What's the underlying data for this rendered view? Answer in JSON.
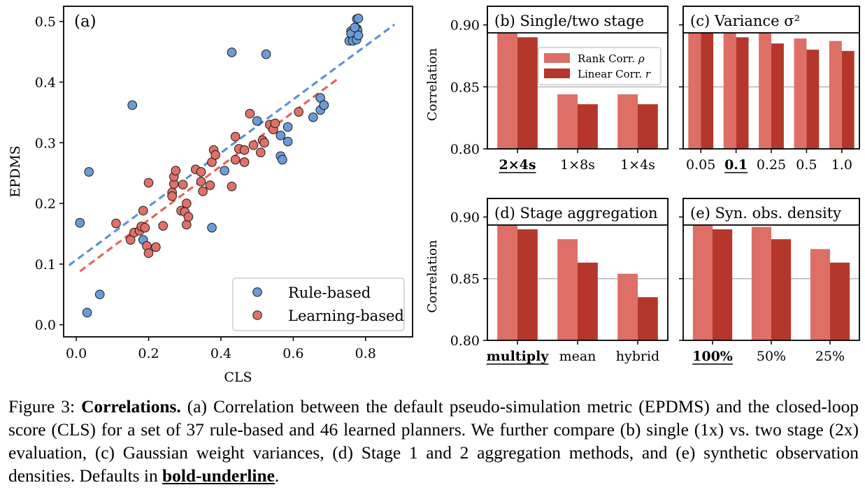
{
  "colors": {
    "rule_based": "#6b9bd8",
    "learning_based": "#e07068",
    "rule_fit": "#5b93d6",
    "learn_fit": "#e0665c",
    "rank_bar": "#dd6f66",
    "linear_bar": "#b5372b",
    "grid": "#b8b8b8"
  },
  "chart_data": [
    {
      "id": "a",
      "type": "scatter",
      "title": "(a)",
      "xlabel": "CLS",
      "ylabel": "EPDMS",
      "xlim": [
        -0.035,
        0.93
      ],
      "ylim": [
        -0.02,
        0.525
      ],
      "xticks": [
        0.0,
        0.2,
        0.4,
        0.6,
        0.8
      ],
      "xtick_labels": [
        "0.0",
        "0.2",
        "0.4",
        "0.6",
        "0.8"
      ],
      "yticks": [
        0.0,
        0.1,
        0.2,
        0.3,
        0.4,
        0.5
      ],
      "ytick_labels": [
        "0.0",
        "0.1",
        "0.2",
        "0.3",
        "0.4",
        "0.5"
      ],
      "grid": false,
      "legend": "bottom-right",
      "series": [
        {
          "name": "Rule-based",
          "color_key": "rule_based",
          "points": [
            [
              0.01,
              0.168
            ],
            [
              0.03,
              0.02
            ],
            [
              0.035,
              0.252
            ],
            [
              0.065,
              0.05
            ],
            [
              0.155,
              0.362
            ],
            [
              0.185,
              0.14
            ],
            [
              0.375,
              0.16
            ],
            [
              0.41,
              0.254
            ],
            [
              0.43,
              0.449
            ],
            [
              0.5,
              0.336
            ],
            [
              0.525,
              0.446
            ],
            [
              0.565,
              0.278
            ],
            [
              0.565,
              0.312
            ],
            [
              0.57,
              0.272
            ],
            [
              0.585,
              0.326
            ],
            [
              0.585,
              0.302
            ],
            [
              0.655,
              0.342
            ],
            [
              0.675,
              0.354
            ],
            [
              0.675,
              0.374
            ],
            [
              0.685,
              0.362
            ],
            [
              0.685,
              0.362
            ],
            [
              0.755,
              0.468
            ],
            [
              0.76,
              0.484
            ],
            [
              0.765,
              0.475
            ],
            [
              0.77,
              0.472
            ],
            [
              0.77,
              0.478
            ],
            [
              0.772,
              0.482
            ],
            [
              0.774,
              0.476
            ],
            [
              0.776,
              0.504
            ],
            [
              0.776,
              0.488
            ],
            [
              0.778,
              0.485
            ],
            [
              0.78,
              0.505
            ],
            [
              0.76,
              0.48
            ],
            [
              0.765,
              0.468
            ],
            [
              0.77,
              0.49
            ],
            [
              0.775,
              0.47
            ],
            [
              0.78,
              0.477
            ]
          ]
        },
        {
          "name": "Learning-based",
          "color_key": "learning_based",
          "points": [
            [
              0.11,
              0.167
            ],
            [
              0.15,
              0.14
            ],
            [
              0.16,
              0.152
            ],
            [
              0.175,
              0.155
            ],
            [
              0.18,
              0.162
            ],
            [
              0.185,
              0.188
            ],
            [
              0.19,
              0.16
            ],
            [
              0.195,
              0.13
            ],
            [
              0.2,
              0.118
            ],
            [
              0.2,
              0.234
            ],
            [
              0.22,
              0.128
            ],
            [
              0.24,
              0.163
            ],
            [
              0.265,
              0.218
            ],
            [
              0.265,
              0.212
            ],
            [
              0.27,
              0.232
            ],
            [
              0.27,
              0.244
            ],
            [
              0.275,
              0.254
            ],
            [
              0.29,
              0.188
            ],
            [
              0.295,
              0.231
            ],
            [
              0.3,
              0.186
            ],
            [
              0.305,
              0.165
            ],
            [
              0.305,
              0.2
            ],
            [
              0.31,
              0.178
            ],
            [
              0.33,
              0.256
            ],
            [
              0.345,
              0.252
            ],
            [
              0.345,
              0.236
            ],
            [
              0.35,
              0.22
            ],
            [
              0.37,
              0.23
            ],
            [
              0.375,
              0.268
            ],
            [
              0.38,
              0.288
            ],
            [
              0.385,
              0.28
            ],
            [
              0.43,
              0.228
            ],
            [
              0.44,
              0.31
            ],
            [
              0.45,
              0.29
            ],
            [
              0.44,
              0.272
            ],
            [
              0.465,
              0.288
            ],
            [
              0.465,
              0.268
            ],
            [
              0.48,
              0.348
            ],
            [
              0.49,
              0.296
            ],
            [
              0.51,
              0.284
            ],
            [
              0.515,
              0.304
            ],
            [
              0.535,
              0.33
            ],
            [
              0.545,
              0.322
            ],
            [
              0.55,
              0.332
            ],
            [
              0.615,
              0.351
            ],
            [
              0.52,
              0.3
            ]
          ]
        }
      ],
      "fits": [
        {
          "series": "Rule-based",
          "color_key": "rule_fit",
          "x": [
            -0.02,
            0.88
          ],
          "y": [
            0.098,
            0.495
          ]
        },
        {
          "series": "Learning-based",
          "color_key": "learn_fit",
          "x": [
            0.01,
            0.72
          ],
          "y": [
            0.088,
            0.404
          ]
        }
      ]
    },
    {
      "id": "b",
      "type": "bar",
      "title": "(b) Single/two stage",
      "ylabel": "Correlation",
      "ylim": [
        0.8,
        0.915
      ],
      "yticks": [
        0.8,
        0.85,
        0.9
      ],
      "ytick_labels": [
        "0.80",
        "0.85",
        "0.90"
      ],
      "categories": [
        "2×4s",
        "1×8s",
        "1×4s"
      ],
      "default_index": 0,
      "legend": "upper-right",
      "series": [
        {
          "name": "Rank Corr. ρ",
          "color_key": "rank_bar",
          "values": [
            0.894,
            0.844,
            0.844
          ]
        },
        {
          "name": "Linear Corr. r",
          "color_key": "linear_bar",
          "values": [
            0.89,
            0.836,
            0.836
          ]
        }
      ]
    },
    {
      "id": "c",
      "type": "bar",
      "title": "(c) Variance σ²",
      "ylabel": "",
      "ylim": [
        0.8,
        0.915
      ],
      "yticks": [
        0.8,
        0.85,
        0.9
      ],
      "ytick_labels": [
        "",
        "",
        ""
      ],
      "categories": [
        "0.05",
        "0.1",
        "0.25",
        "0.5",
        "1.0"
      ],
      "default_index": 1,
      "series": [
        {
          "name": "Rank Corr. ρ",
          "color_key": "rank_bar",
          "values": [
            0.9,
            0.894,
            0.897,
            0.889,
            0.887
          ]
        },
        {
          "name": "Linear Corr. r",
          "color_key": "linear_bar",
          "values": [
            0.894,
            0.89,
            0.885,
            0.88,
            0.879
          ]
        }
      ]
    },
    {
      "id": "d",
      "type": "bar",
      "title": "(d) Stage aggregation",
      "ylabel": "Correlation",
      "ylim": [
        0.8,
        0.915
      ],
      "yticks": [
        0.8,
        0.85,
        0.9
      ],
      "ytick_labels": [
        "0.80",
        "0.85",
        "0.90"
      ],
      "categories": [
        "multiply",
        "mean",
        "hybrid"
      ],
      "default_index": 0,
      "series": [
        {
          "name": "Rank Corr. ρ",
          "color_key": "rank_bar",
          "values": [
            0.894,
            0.882,
            0.854
          ]
        },
        {
          "name": "Linear Corr. r",
          "color_key": "linear_bar",
          "values": [
            0.89,
            0.863,
            0.835
          ]
        }
      ]
    },
    {
      "id": "e",
      "type": "bar",
      "title": "(e) Syn. obs. density",
      "ylabel": "",
      "ylim": [
        0.8,
        0.915
      ],
      "yticks": [
        0.8,
        0.85,
        0.9
      ],
      "ytick_labels": [
        "",
        "",
        ""
      ],
      "categories": [
        "100%",
        "50%",
        "25%"
      ],
      "default_index": 0,
      "series": [
        {
          "name": "Rank Corr. ρ",
          "color_key": "rank_bar",
          "values": [
            0.894,
            0.892,
            0.874
          ]
        },
        {
          "name": "Linear Corr. r",
          "color_key": "linear_bar",
          "values": [
            0.89,
            0.882,
            0.863
          ]
        }
      ]
    }
  ],
  "legend_a": {
    "rule": "Rule-based",
    "learn": "Learning-based"
  },
  "legend_bars": {
    "rank_label": "Rank Corr. ",
    "rank_sym": "ρ",
    "linear_label": "Linear Corr. ",
    "linear_sym": "r"
  },
  "caption": {
    "figure_label": "Figure 3:",
    "bold_title": "Correlations.",
    "body": "(a) Correlation between the default pseudo-simulation metric (EPDMS) and the closed-loop score (CLS) for a set of 37 rule-based and 46 learned planners. We further compare (b) single (1x) vs. two stage (2x) evaluation, (c) Gaussian weight variances, (d) Stage 1 and 2 aggregation methods, and (e) synthetic observation densities. Defaults in",
    "bold_underline": "bold-underline",
    "end": "."
  }
}
